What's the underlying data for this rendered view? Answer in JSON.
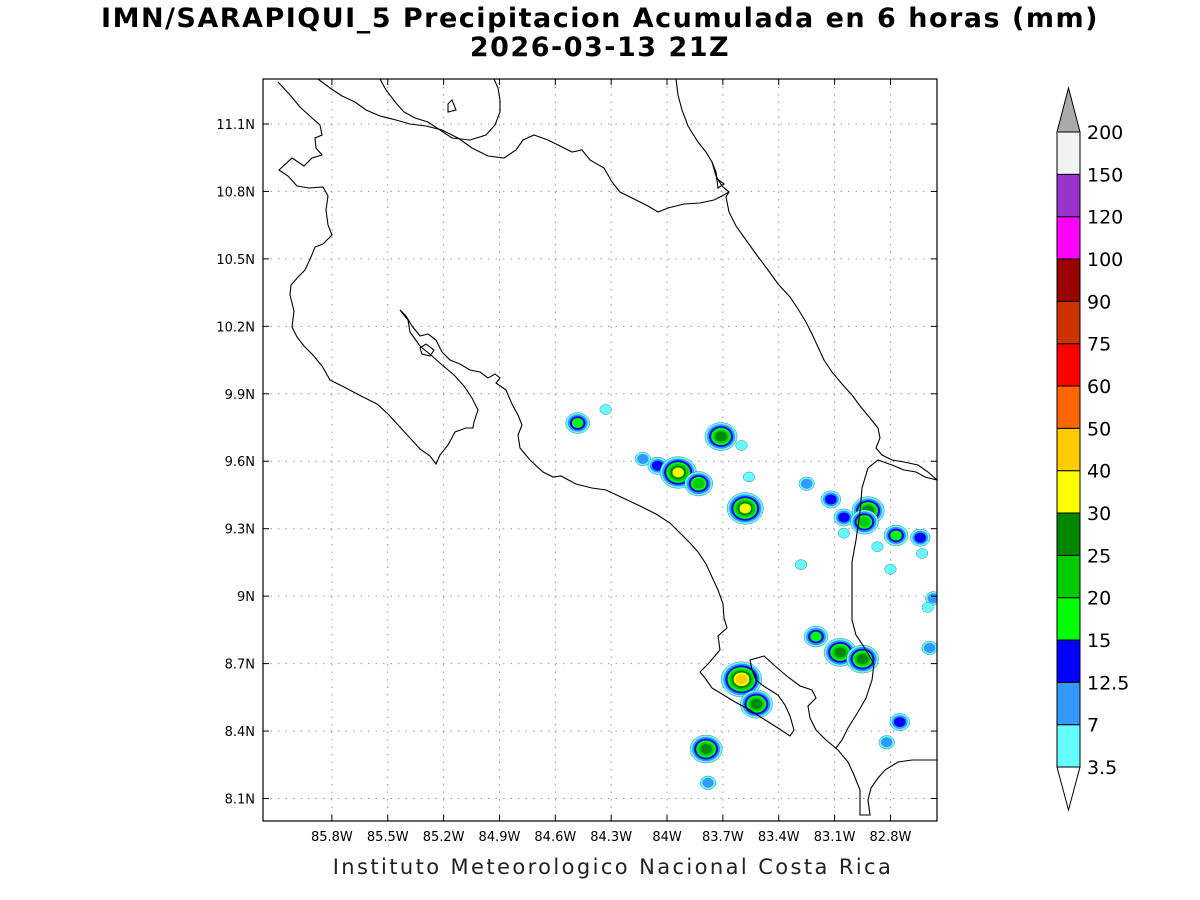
{
  "title": {
    "line1": "IMN/SARAPIQUI_5 Precipitacion Acumulada en 6 horas (mm)",
    "line2": "2026-03-13 21Z"
  },
  "credit": "Instituto Meteorologico Nacional Costa Rica",
  "map": {
    "lon_range": [
      -86.17,
      -82.55
    ],
    "lat_range": [
      8.0,
      11.3
    ],
    "lon_ticks": [
      -85.8,
      -85.5,
      -85.2,
      -84.9,
      -84.6,
      -84.3,
      -84.0,
      -83.7,
      -83.4,
      -83.1,
      -82.8
    ],
    "lon_tick_labels": [
      "85.8W",
      "85.5W",
      "85.2W",
      "84.9W",
      "84.6W",
      "84.3W",
      "84W",
      "83.7W",
      "83.4W",
      "83.1W",
      "82.8W"
    ],
    "lat_ticks": [
      8.1,
      8.4,
      8.7,
      9.0,
      9.3,
      9.6,
      9.9,
      10.2,
      10.5,
      10.8,
      11.1
    ],
    "lat_tick_labels": [
      "8.1N",
      "8.4N",
      "8.7N",
      "9N",
      "9.3N",
      "9.6N",
      "9.9N",
      "10.2N",
      "10.5N",
      "10.8N",
      "11.1N"
    ],
    "grid": true,
    "coastline_color": "#000000"
  },
  "colorbar": {
    "levels": [
      "3.5",
      "7",
      "12.5",
      "15",
      "20",
      "25",
      "30",
      "40",
      "50",
      "60",
      "75",
      "90",
      "100",
      "120",
      "150",
      "200"
    ],
    "colors": [
      "#66ffff",
      "#3399ff",
      "#0000ff",
      "#00ff00",
      "#00cc00",
      "#008800",
      "#ffff00",
      "#ffcc00",
      "#ff6600",
      "#ff0000",
      "#cc3300",
      "#990000",
      "#ff00ff",
      "#9933cc",
      "#f2f2f2"
    ],
    "overflow_color": "#aaaaaa"
  },
  "precip_cells": [
    {
      "lon": -84.48,
      "lat": 9.77,
      "peak": 15
    },
    {
      "lon": -84.33,
      "lat": 9.83,
      "peak": 3.5
    },
    {
      "lon": -84.13,
      "lat": 9.61,
      "peak": 7
    },
    {
      "lon": -84.05,
      "lat": 9.58,
      "peak": 12.5
    },
    {
      "lon": -83.94,
      "lat": 9.55,
      "peak": 30
    },
    {
      "lon": -83.83,
      "lat": 9.5,
      "peak": 20
    },
    {
      "lon": -83.71,
      "lat": 9.71,
      "peak": 25
    },
    {
      "lon": -83.6,
      "lat": 9.67,
      "peak": 3.5
    },
    {
      "lon": -83.58,
      "lat": 9.39,
      "peak": 30
    },
    {
      "lon": -83.56,
      "lat": 9.53,
      "peak": 3.5
    },
    {
      "lon": -83.25,
      "lat": 9.5,
      "peak": 7
    },
    {
      "lon": -83.12,
      "lat": 9.43,
      "peak": 12.5
    },
    {
      "lon": -83.05,
      "lat": 9.35,
      "peak": 12.5
    },
    {
      "lon": -83.05,
      "lat": 9.28,
      "peak": 3.5
    },
    {
      "lon": -82.92,
      "lat": 9.38,
      "peak": 25
    },
    {
      "lon": -82.94,
      "lat": 9.33,
      "peak": 20
    },
    {
      "lon": -82.87,
      "lat": 9.22,
      "peak": 3.5
    },
    {
      "lon": -82.77,
      "lat": 9.27,
      "peak": 15
    },
    {
      "lon": -82.64,
      "lat": 9.26,
      "peak": 12.5
    },
    {
      "lon": -82.63,
      "lat": 9.19,
      "peak": 3.5
    },
    {
      "lon": -83.28,
      "lat": 9.14,
      "peak": 3.5
    },
    {
      "lon": -82.8,
      "lat": 9.12,
      "peak": 3.5
    },
    {
      "lon": -82.57,
      "lat": 8.99,
      "peak": 7
    },
    {
      "lon": -82.6,
      "lat": 8.95,
      "peak": 3.5
    },
    {
      "lon": -83.2,
      "lat": 8.82,
      "peak": 15
    },
    {
      "lon": -83.07,
      "lat": 8.75,
      "peak": 25
    },
    {
      "lon": -82.95,
      "lat": 8.72,
      "peak": 25
    },
    {
      "lon": -82.59,
      "lat": 8.77,
      "peak": 7
    },
    {
      "lon": -83.6,
      "lat": 8.63,
      "peak": 40
    },
    {
      "lon": -83.52,
      "lat": 8.52,
      "peak": 25
    },
    {
      "lon": -82.75,
      "lat": 8.44,
      "peak": 12.5
    },
    {
      "lon": -82.82,
      "lat": 8.35,
      "peak": 7
    },
    {
      "lon": -83.79,
      "lat": 8.32,
      "peak": 25
    },
    {
      "lon": -83.78,
      "lat": 8.17,
      "peak": 7
    }
  ]
}
